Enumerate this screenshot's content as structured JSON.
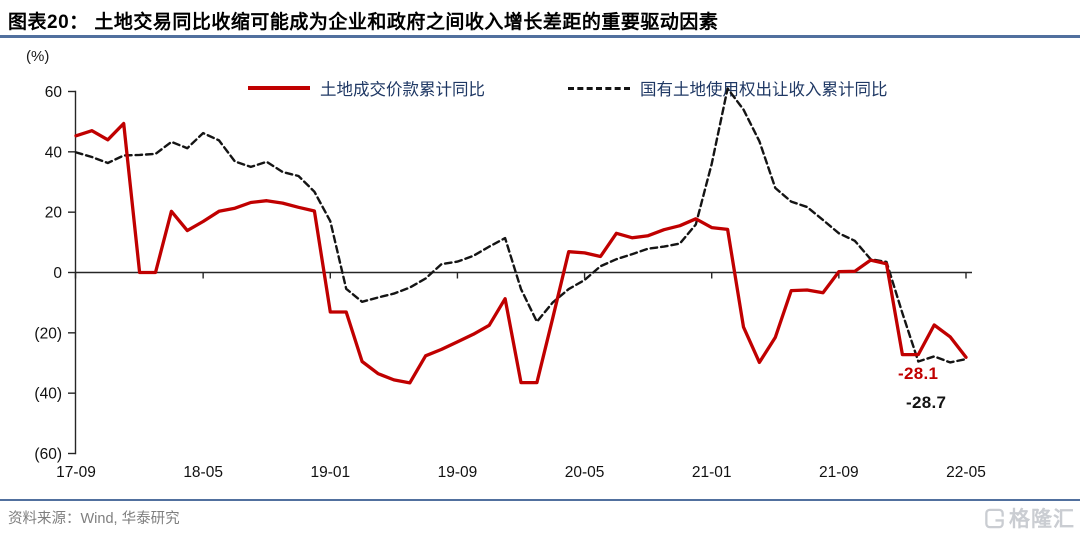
{
  "header": {
    "title": "图表20：  土地交易同比收缩可能成为企业和政府之间收入增长差距的重要驱动因素"
  },
  "footer": {
    "source": "资料来源：Wind, 华泰研究",
    "logo_text": "格隆汇"
  },
  "colors": {
    "accent_red": "#C00000",
    "line_black": "#141414",
    "legend_text": "#1F3864",
    "axis_black": "#262626",
    "rule_blue": "#51709E",
    "source_gray": "#7F7F7F",
    "logo_gray": "#CACDD2"
  },
  "chart_data": {
    "type": "line",
    "title": "土地交易同比收缩可能成为企业和政府之间收入增长差距的重要驱动因素",
    "xlabel": "",
    "ylabel": "(%)",
    "ylim": [
      -60,
      65
    ],
    "grid": false,
    "legend_position": "top",
    "y_ticks": [
      60,
      40,
      20,
      0,
      -20,
      -40,
      -60
    ],
    "y_tick_labels": [
      "60",
      "40",
      "20",
      "0",
      "(20)",
      "(40)",
      "(60)"
    ],
    "x_tick_indices": [
      0,
      8,
      16,
      24,
      32,
      40,
      48,
      56
    ],
    "x_tick_labels": [
      "17-09",
      "18-05",
      "19-01",
      "19-09",
      "20-05",
      "21-01",
      "21-09",
      "22-05"
    ],
    "x": [
      "17-09",
      "17-10",
      "17-11",
      "17-12",
      "18-01",
      "18-02",
      "18-03",
      "18-04",
      "18-05",
      "18-06",
      "18-07",
      "18-08",
      "18-09",
      "18-10",
      "18-11",
      "18-12",
      "19-01",
      "19-02",
      "19-03",
      "19-04",
      "19-05",
      "19-06",
      "19-07",
      "19-08",
      "19-09",
      "19-10",
      "19-11",
      "19-12",
      "20-01",
      "20-02",
      "20-03",
      "20-04",
      "20-05",
      "20-06",
      "20-07",
      "20-08",
      "20-09",
      "20-10",
      "20-11",
      "20-12",
      "21-01",
      "21-02",
      "21-03",
      "21-04",
      "21-05",
      "21-06",
      "21-07",
      "21-08",
      "21-09",
      "21-10",
      "21-11",
      "21-12",
      "22-01",
      "22-02",
      "22-03",
      "22-04",
      "22-05"
    ],
    "series": [
      {
        "name": "土地成交价款累计同比",
        "color": "#C00000",
        "dashed": false,
        "values": [
          45.3,
          47.0,
          44.0,
          49.4,
          0.0,
          0.0,
          20.3,
          13.9,
          16.9,
          20.3,
          21.3,
          23.2,
          23.8,
          23.0,
          21.6,
          20.4,
          -13.1,
          -13.1,
          -29.5,
          -33.5,
          -35.6,
          -36.6,
          -27.6,
          -25.5,
          -23.0,
          -20.5,
          -17.5,
          -8.7,
          -36.5,
          -36.5,
          -15.0,
          6.9,
          6.5,
          5.3,
          13.0,
          11.5,
          12.2,
          14.2,
          15.5,
          17.8,
          14.9,
          14.3,
          -18.1,
          -29.8,
          -21.5,
          -6.0,
          -5.8,
          -6.7,
          0.3,
          0.4,
          4.1,
          2.9,
          -27.2,
          -27.2,
          -17.4,
          -21.3,
          -28.1
        ]
      },
      {
        "name": "国有土地使用权出让收入累计同比",
        "color": "#141414",
        "dashed": true,
        "values": [
          39.8,
          38.3,
          36.3,
          38.8,
          39.0,
          39.3,
          43.3,
          41.2,
          46.2,
          43.8,
          36.8,
          35.0,
          36.7,
          33.3,
          32.0,
          26.8,
          17.0,
          -5.4,
          -9.7,
          -8.3,
          -7.0,
          -5.0,
          -2.0,
          2.8,
          3.6,
          5.5,
          8.6,
          11.4,
          -5.5,
          -16.3,
          -9.9,
          -5.5,
          -2.5,
          2.1,
          4.4,
          6.1,
          7.9,
          8.6,
          9.6,
          15.9,
          36.0,
          61.0,
          54.0,
          43.5,
          28.0,
          23.5,
          21.7,
          17.4,
          13.0,
          10.5,
          4.4,
          3.5,
          -13.5,
          -29.5,
          -27.8,
          -29.8,
          -28.7
        ]
      }
    ],
    "annotations": [
      {
        "text": "-28.1",
        "series": "土地成交价款累计同比",
        "x": "22-05",
        "y": -28.1
      },
      {
        "text": "-28.7",
        "series": "国有土地使用权出让收入累计同比",
        "x": "22-05",
        "y": -28.7
      }
    ]
  }
}
